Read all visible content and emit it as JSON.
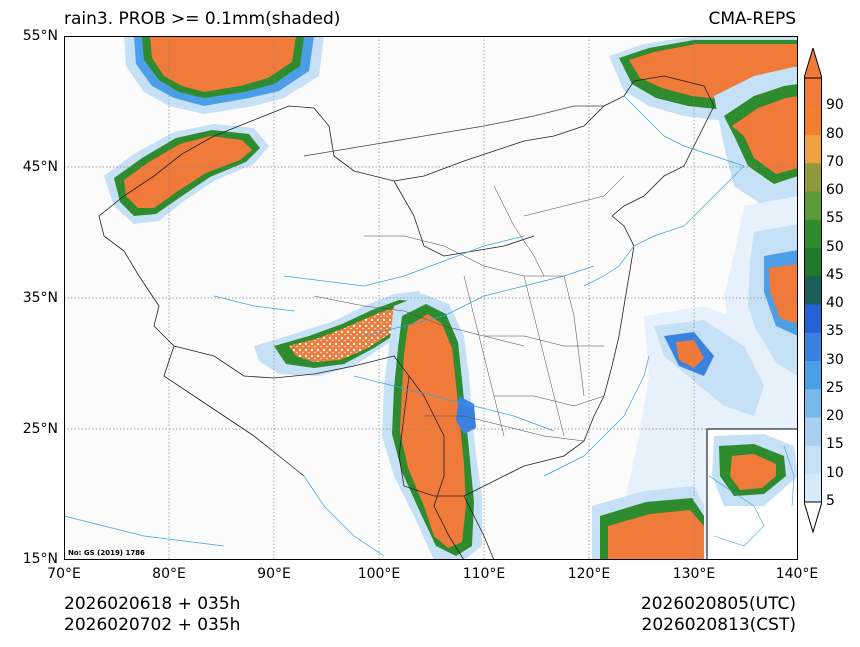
{
  "header": {
    "title": "rain3. PROB >= 0.1mm(shaded)",
    "source": "CMA-REPS"
  },
  "map": {
    "lon_range": [
      70,
      140
    ],
    "lat_range": [
      15,
      55
    ],
    "lat_ticks": [
      {
        "value": 55,
        "label": "55°N"
      },
      {
        "value": 45,
        "label": "45°N"
      },
      {
        "value": 35,
        "label": "35°N"
      },
      {
        "value": 25,
        "label": "25°N"
      },
      {
        "value": 15,
        "label": "15°N"
      }
    ],
    "lon_ticks": [
      {
        "value": 70,
        "label": "70°E"
      },
      {
        "value": 80,
        "label": "80°E"
      },
      {
        "value": 90,
        "label": "90°E"
      },
      {
        "value": 100,
        "label": "100°E"
      },
      {
        "value": 110,
        "label": "110°E"
      },
      {
        "value": 120,
        "label": "120°E"
      },
      {
        "value": 130,
        "label": "130°E"
      },
      {
        "value": 140,
        "label": "140°E"
      }
    ],
    "approval_note": "No: GS (2019) 1786"
  },
  "colorbar": {
    "levels": [
      5,
      10,
      15,
      20,
      25,
      30,
      35,
      40,
      45,
      50,
      55,
      60,
      70,
      80,
      90
    ],
    "colors": [
      "#d6eaf8",
      "#c6e0f5",
      "#a8d0f0",
      "#7ab8ec",
      "#4c9ee6",
      "#3a82e0",
      "#2563d4",
      "#1d5e5a",
      "#1f7a2c",
      "#2e8b2e",
      "#5b9a3a",
      "#8e9a3c",
      "#f0a040",
      "#f08030",
      "#f07a3a"
    ]
  },
  "footer": {
    "init_utc": "2026020618  +  035h",
    "init_cst": "2026020702  +  035h",
    "valid_utc": "2026020805(UTC)",
    "valid_cst": "2026020813(CST)"
  }
}
